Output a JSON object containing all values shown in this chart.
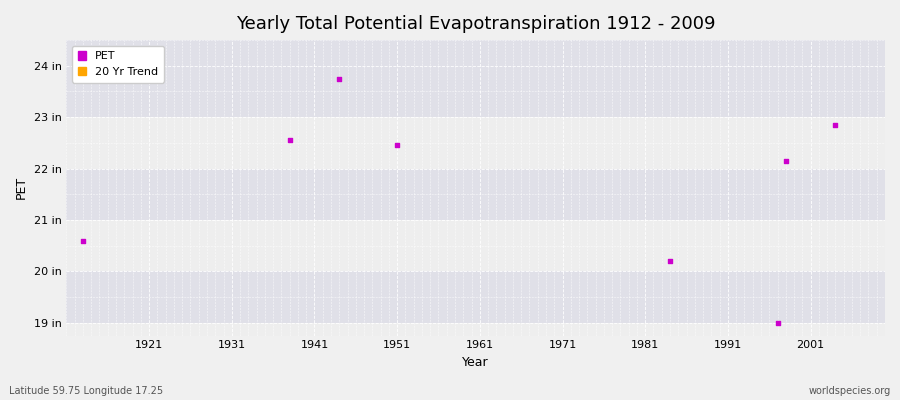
{
  "title": "Yearly Total Potential Evapotranspiration 1912 - 2009",
  "xlabel": "Year",
  "ylabel": "PET",
  "subtitle_left": "Latitude 59.75 Longitude 17.25",
  "subtitle_right": "worldspecies.org",
  "xlim": [
    1911,
    2010
  ],
  "ylim": [
    18.75,
    24.5
  ],
  "yticks": [
    19,
    20,
    21,
    22,
    23,
    24
  ],
  "ytick_labels": [
    "19 in",
    "20 in",
    "21 in",
    "22 in",
    "23 in",
    "24 in"
  ],
  "xticks": [
    1921,
    1931,
    1941,
    1951,
    1961,
    1971,
    1981,
    1991,
    2001
  ],
  "pet_color": "#cc00cc",
  "trend_color": "#ffa500",
  "bg_color": "#f0f0f0",
  "plot_bg_light": "#eeeeee",
  "plot_bg_dark": "#e0e0e8",
  "grid_color": "#ffffff",
  "pet_x": [
    1913,
    1938,
    1944,
    1951,
    1984,
    1997,
    2004,
    1998
  ],
  "pet_y": [
    20.6,
    22.55,
    23.75,
    22.45,
    20.2,
    19.0,
    22.85,
    22.15
  ],
  "marker_size": 3,
  "title_fontsize": 13,
  "axis_fontsize": 9,
  "tick_fontsize": 8,
  "legend_items": [
    "PET",
    "20 Yr Trend"
  ]
}
